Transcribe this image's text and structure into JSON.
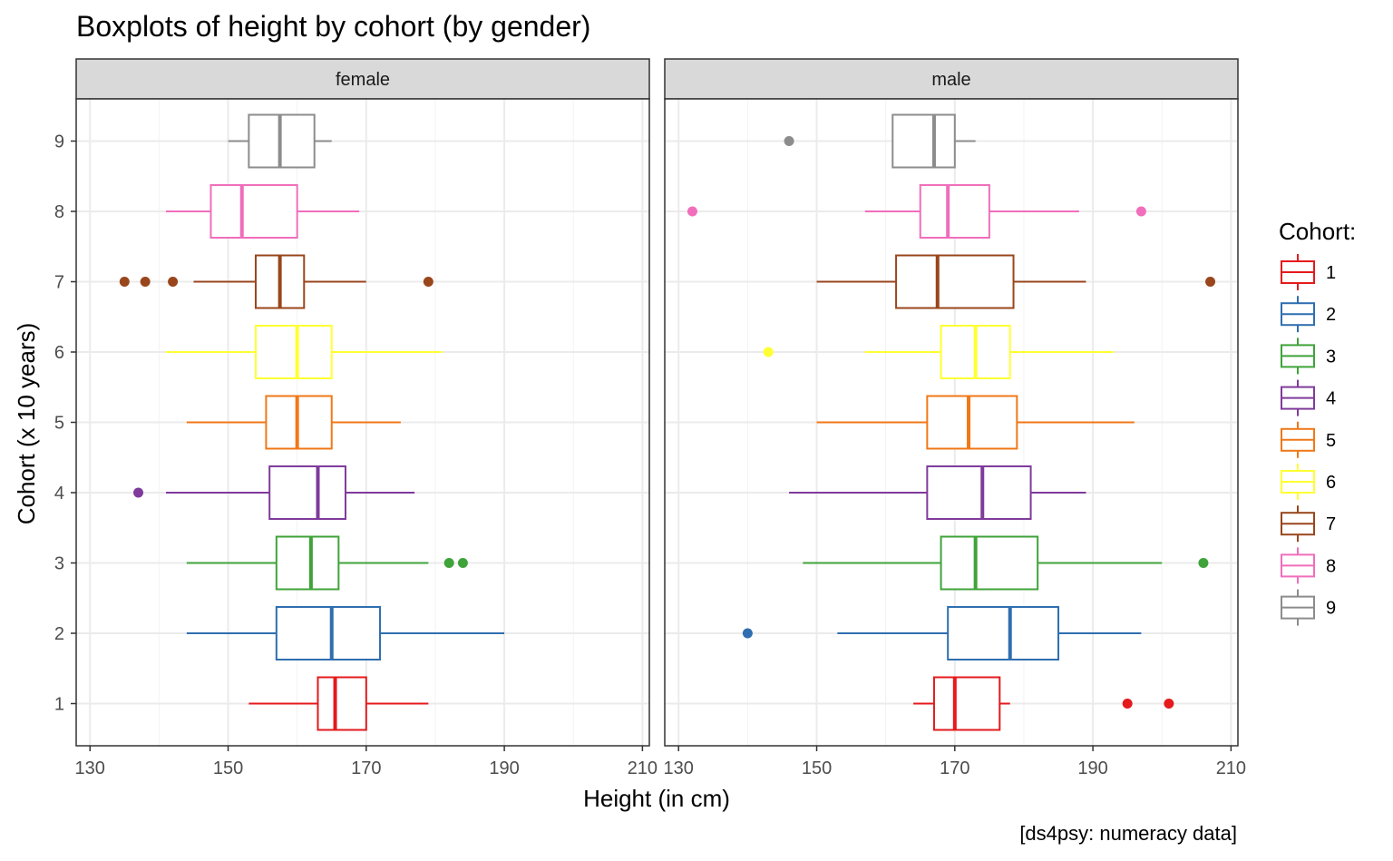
{
  "chart_data": {
    "type": "boxplot",
    "title": "Boxplots of height by cohort (by gender)",
    "xlabel": "Height (in cm)",
    "ylabel": "Cohort (x 10 years)",
    "caption": "[ds4psy: numeracy data]",
    "xlim": [
      128,
      211
    ],
    "x_ticks": [
      130,
      150,
      170,
      190,
      210
    ],
    "y_ticks": [
      "1",
      "2",
      "3",
      "4",
      "5",
      "6",
      "7",
      "8",
      "9"
    ],
    "grid": true,
    "orientation": "horizontal",
    "legend": {
      "title": "Cohort:",
      "position": "right",
      "items": [
        {
          "label": "1",
          "color": "#E41A1C"
        },
        {
          "label": "2",
          "color": "#2F6EB0"
        },
        {
          "label": "3",
          "color": "#3FA33A"
        },
        {
          "label": "4",
          "color": "#7F3B9B"
        },
        {
          "label": "5",
          "color": "#F07818"
        },
        {
          "label": "6",
          "color": "#FFFF33"
        },
        {
          "label": "7",
          "color": "#99461C"
        },
        {
          "label": "8",
          "color": "#F06EBB"
        },
        {
          "label": "9",
          "color": "#8C8C8C"
        }
      ]
    },
    "panels": [
      {
        "name": "female",
        "boxes": [
          {
            "cohort": "1",
            "lower_whisker": 153,
            "q1": 163,
            "median": 165.5,
            "q3": 170,
            "upper_whisker": 179,
            "outliers": []
          },
          {
            "cohort": "2",
            "lower_whisker": 144,
            "q1": 157,
            "median": 165,
            "q3": 172,
            "upper_whisker": 190,
            "outliers": []
          },
          {
            "cohort": "3",
            "lower_whisker": 144,
            "q1": 157,
            "median": 162,
            "q3": 166,
            "upper_whisker": 179,
            "outliers": [
              182,
              184
            ]
          },
          {
            "cohort": "4",
            "lower_whisker": 141,
            "q1": 156,
            "median": 163,
            "q3": 167,
            "upper_whisker": 177,
            "outliers": [
              137
            ]
          },
          {
            "cohort": "5",
            "lower_whisker": 144,
            "q1": 155.5,
            "median": 160,
            "q3": 165,
            "upper_whisker": 175,
            "outliers": []
          },
          {
            "cohort": "6",
            "lower_whisker": 141,
            "q1": 154,
            "median": 160,
            "q3": 165,
            "upper_whisker": 181,
            "outliers": []
          },
          {
            "cohort": "7",
            "lower_whisker": 145,
            "q1": 154,
            "median": 157.5,
            "q3": 161,
            "upper_whisker": 170,
            "outliers": [
              135,
              138,
              142,
              179
            ]
          },
          {
            "cohort": "8",
            "lower_whisker": 141,
            "q1": 147.5,
            "median": 152,
            "q3": 160,
            "upper_whisker": 169,
            "outliers": []
          },
          {
            "cohort": "9",
            "lower_whisker": 150,
            "q1": 153,
            "median": 157.5,
            "q3": 162.5,
            "upper_whisker": 165,
            "outliers": []
          }
        ]
      },
      {
        "name": "male",
        "boxes": [
          {
            "cohort": "1",
            "lower_whisker": 164,
            "q1": 167,
            "median": 170,
            "q3": 176.5,
            "upper_whisker": 178,
            "outliers": [
              195,
              201
            ]
          },
          {
            "cohort": "2",
            "lower_whisker": 153,
            "q1": 169,
            "median": 178,
            "q3": 185,
            "upper_whisker": 197,
            "outliers": [
              140
            ]
          },
          {
            "cohort": "3",
            "lower_whisker": 148,
            "q1": 168,
            "median": 173,
            "q3": 182,
            "upper_whisker": 200,
            "outliers": [
              206
            ]
          },
          {
            "cohort": "4",
            "lower_whisker": 146,
            "q1": 166,
            "median": 174,
            "q3": 181,
            "upper_whisker": 189,
            "outliers": []
          },
          {
            "cohort": "5",
            "lower_whisker": 150,
            "q1": 166,
            "median": 172,
            "q3": 179,
            "upper_whisker": 196,
            "outliers": []
          },
          {
            "cohort": "6",
            "lower_whisker": 157,
            "q1": 168,
            "median": 173,
            "q3": 178,
            "upper_whisker": 193,
            "outliers": [
              143
            ]
          },
          {
            "cohort": "7",
            "lower_whisker": 150,
            "q1": 161.5,
            "median": 167.5,
            "q3": 178.5,
            "upper_whisker": 189,
            "outliers": [
              207
            ]
          },
          {
            "cohort": "8",
            "lower_whisker": 157,
            "q1": 165,
            "median": 169,
            "q3": 175,
            "upper_whisker": 188,
            "outliers": [
              132,
              197
            ]
          },
          {
            "cohort": "9",
            "lower_whisker": 161,
            "q1": 161,
            "median": 167,
            "q3": 170,
            "upper_whisker": 173,
            "outliers": [
              146
            ]
          }
        ]
      }
    ]
  }
}
